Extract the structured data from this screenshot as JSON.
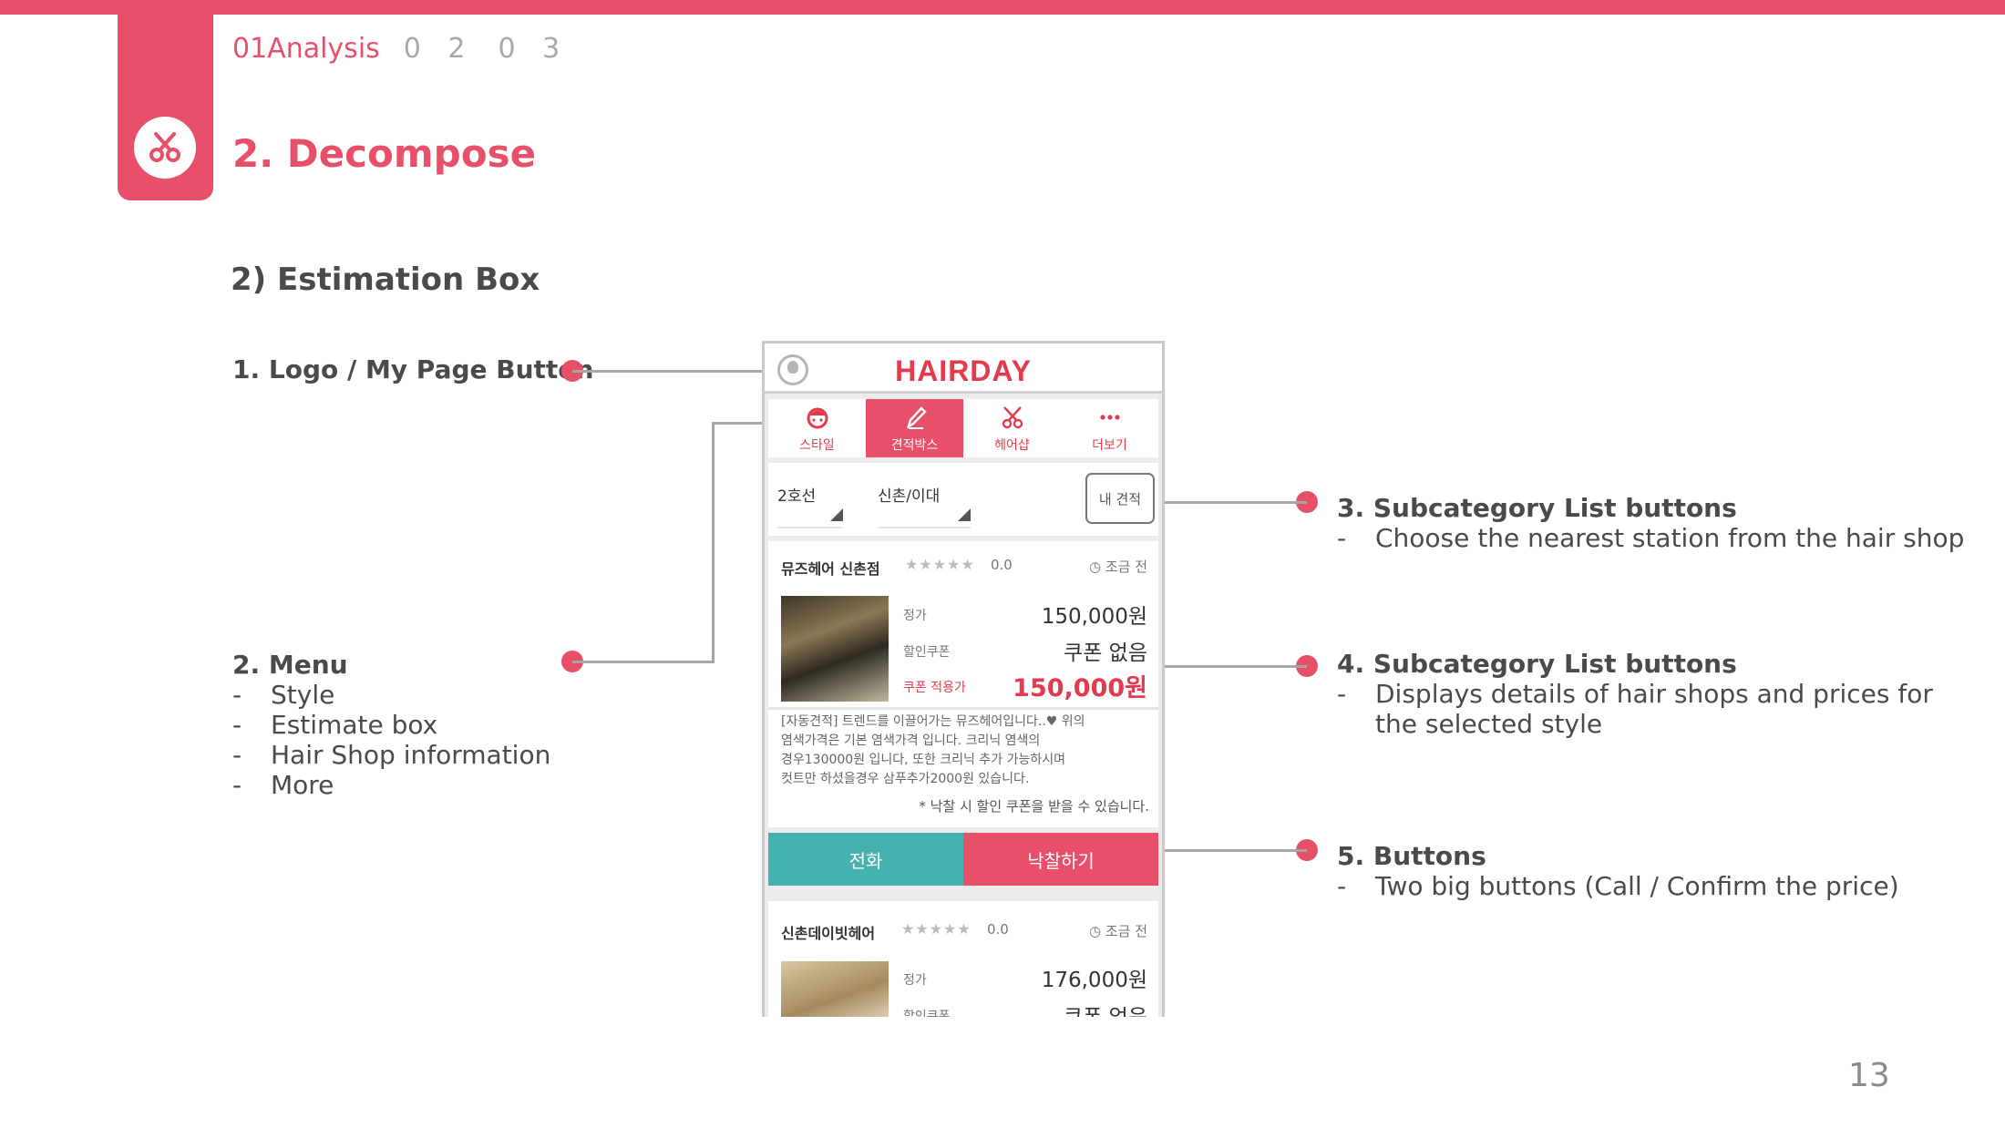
{
  "header": {
    "breadcrumb_active": "01Analysis",
    "breadcrumb_step2": "0 2",
    "breadcrumb_step3": "0 3",
    "page_title": "2. Decompose",
    "section_title": "2) Estimation Box",
    "corner_icon": "scissors-icon",
    "accent_color": "#e8506a"
  },
  "annotations": {
    "logo": {
      "title": "1. Logo / My Page Button"
    },
    "menu": {
      "title": "2. Menu",
      "items": [
        "Style",
        "Estimate box",
        "Hair Shop information",
        "More"
      ]
    },
    "subcategory_station": {
      "title": "3. Subcategory List buttons",
      "detail": "Choose the nearest station from the hair shop"
    },
    "subcategory_details": {
      "title": "4. Subcategory List buttons",
      "detail_line1": "Displays details of hair shops and prices for",
      "detail_line2": "the selected style"
    },
    "buttons": {
      "title": "5. Buttons",
      "detail": "Two big buttons (Call / Confirm the price)"
    }
  },
  "phone": {
    "logo": "HAIRDAY",
    "menu": [
      {
        "label": "스타일",
        "icon": "face-icon"
      },
      {
        "label": "견적박스",
        "icon": "pencil-icon"
      },
      {
        "label": "헤어샵",
        "icon": "scissors-icon"
      },
      {
        "label": "더보기",
        "icon": "more-icon"
      }
    ],
    "filter": {
      "line": "2호선",
      "station": "신촌/이대",
      "my_estimate": "내 견적"
    },
    "card1": {
      "name": "뮤즈헤어 신촌점",
      "stars": "★★★★★",
      "score": "0.0",
      "time": "◷ 조금 전",
      "regular_label": "정가",
      "regular_value": "150,000원",
      "discount_label": "할인쿠폰",
      "discount_value": "쿠폰 없음",
      "coupon_label": "쿠폰 적용가",
      "coupon_value": "150,000원",
      "desc_line1": "[자동견적] 트렌드를 이끌어가는 뮤즈헤어입니다..♥ 위의",
      "desc_line2": "염색가격은 기본 염색가격 입니다. 크리닉 염색의",
      "desc_line3": "경우130000원 입니다, 또한 크리닉 추가 가능하시며",
      "desc_line4": "컷트만 하셨을경우 삼푸추가2000원 있습니다.",
      "note": "* 낙찰 시 할인 쿠폰을 받을 수 있습니다."
    },
    "call_button": "전화",
    "confirm_button": "낙찰하기",
    "card2": {
      "name": "신촌데이빗헤어",
      "stars": "★★★★★",
      "score": "0.0",
      "time": "◷ 조금 전",
      "regular_label": "정가",
      "regular_value": "176,000원",
      "discount_label": "할인쿠폰",
      "discount_value": "쿠폰 없음"
    }
  },
  "page_number": "13"
}
